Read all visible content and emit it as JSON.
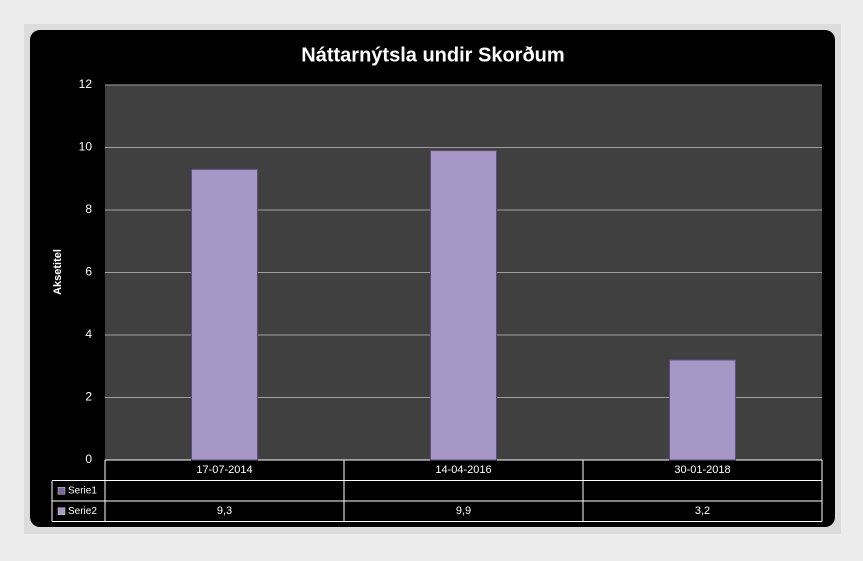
{
  "chart_data": {
    "type": "bar",
    "title": "Náttarnýtsla undir Skorðum",
    "y_label": "Aksetitel",
    "categories": [
      "17-07-2014",
      "14-04-2016",
      "30-01-2018"
    ],
    "series": [
      {
        "name": "Serie1",
        "color": "#7d6a9c",
        "values": [
          null,
          null,
          null
        ]
      },
      {
        "name": "Serie2",
        "color": "#a697c7",
        "values": [
          9.3,
          9.9,
          3.2
        ],
        "value_labels": [
          "9,3",
          "9,9",
          "3,2"
        ]
      }
    ],
    "ylim": [
      0,
      12
    ],
    "yticks": [
      0,
      2,
      4,
      6,
      8,
      10,
      12
    ],
    "grid": true,
    "data_table": true
  }
}
